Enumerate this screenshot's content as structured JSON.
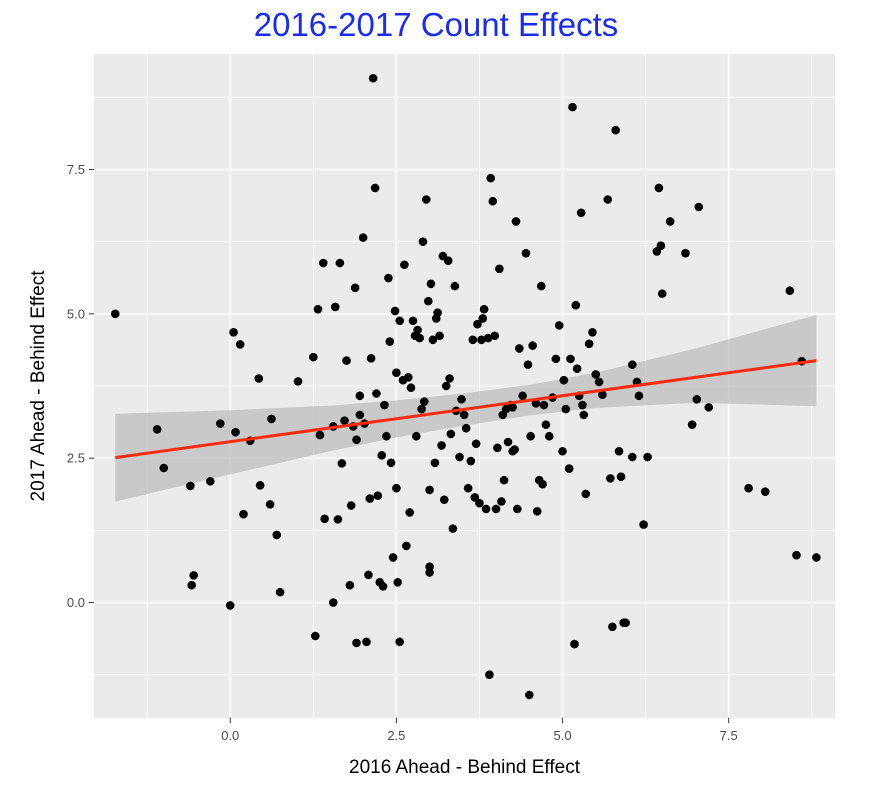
{
  "chart_data": {
    "type": "scatter",
    "title": "2016-2017 Count Effects",
    "xlabel": "2016 Ahead - Behind Effect",
    "ylabel": "2017 Ahead - Behind Effect",
    "xlim": [
      -2.05,
      9.1
    ],
    "ylim": [
      -2.0,
      9.5
    ],
    "xticks": [
      0.0,
      2.5,
      5.0,
      7.5
    ],
    "xtick_labels": [
      "0.0",
      "2.5",
      "5.0",
      "7.5"
    ],
    "yticks": [
      0.0,
      2.5,
      5.0,
      7.5
    ],
    "ytick_labels": [
      "0.0",
      "2.5",
      "5.0",
      "7.5"
    ],
    "grid": true,
    "background": "#ebebeb",
    "point_color": "#000000",
    "fit_line_color": "#ff2a0a",
    "confidence_band_color": "#bdbdbd",
    "title_color": "#1a2cf0",
    "fit_line": {
      "x": [
        -1.73,
        8.82
      ],
      "y": [
        2.51,
        4.19
      ]
    },
    "confidence_band": {
      "x": [
        -1.73,
        0.0,
        1.5,
        2.5,
        3.5,
        4.5,
        5.5,
        7.0,
        8.82
      ],
      "lower": [
        1.75,
        2.22,
        2.62,
        2.86,
        3.06,
        3.24,
        3.37,
        3.46,
        3.4
      ],
      "upper": [
        3.27,
        3.33,
        3.41,
        3.5,
        3.62,
        3.77,
        3.98,
        4.4,
        4.98
      ]
    },
    "points": [
      [
        -1.73,
        5.0
      ],
      [
        -1.1,
        3.0
      ],
      [
        -1.0,
        2.33
      ],
      [
        -0.6,
        2.02
      ],
      [
        -0.58,
        0.3
      ],
      [
        -0.55,
        0.47
      ],
      [
        -0.3,
        2.1
      ],
      [
        -0.15,
        3.1
      ],
      [
        0.0,
        -0.05
      ],
      [
        0.05,
        4.68
      ],
      [
        0.08,
        2.95
      ],
      [
        0.15,
        4.47
      ],
      [
        0.2,
        1.53
      ],
      [
        0.3,
        2.8
      ],
      [
        0.43,
        3.88
      ],
      [
        0.45,
        2.03
      ],
      [
        0.6,
        1.7
      ],
      [
        0.62,
        3.18
      ],
      [
        0.7,
        1.17
      ],
      [
        0.75,
        0.18
      ],
      [
        1.02,
        3.83
      ],
      [
        1.25,
        4.25
      ],
      [
        1.28,
        -0.58
      ],
      [
        1.32,
        5.08
      ],
      [
        1.35,
        2.9
      ],
      [
        1.4,
        5.88
      ],
      [
        1.42,
        1.45
      ],
      [
        1.55,
        3.05
      ],
      [
        1.58,
        5.12
      ],
      [
        1.62,
        1.44
      ],
      [
        1.65,
        5.88
      ],
      [
        1.68,
        2.41
      ],
      [
        1.72,
        3.15
      ],
      [
        1.75,
        4.19
      ],
      [
        1.55,
        0.0
      ],
      [
        1.8,
        0.3
      ],
      [
        1.82,
        1.68
      ],
      [
        1.85,
        3.05
      ],
      [
        1.88,
        5.45
      ],
      [
        1.9,
        -0.7
      ],
      [
        1.95,
        3.58
      ],
      [
        1.9,
        2.82
      ],
      [
        1.95,
        3.25
      ],
      [
        2.0,
        6.32
      ],
      [
        2.02,
        3.1
      ],
      [
        2.05,
        -0.68
      ],
      [
        2.08,
        0.48
      ],
      [
        2.1,
        1.8
      ],
      [
        2.12,
        4.23
      ],
      [
        2.15,
        9.08
      ],
      [
        2.18,
        7.18
      ],
      [
        2.2,
        3.62
      ],
      [
        2.22,
        1.85
      ],
      [
        2.25,
        0.35
      ],
      [
        2.28,
        2.55
      ],
      [
        2.3,
        0.28
      ],
      [
        2.32,
        3.42
      ],
      [
        2.35,
        2.88
      ],
      [
        2.38,
        5.62
      ],
      [
        2.4,
        4.52
      ],
      [
        2.42,
        2.42
      ],
      [
        2.45,
        0.78
      ],
      [
        2.48,
        5.05
      ],
      [
        2.5,
        3.98
      ],
      [
        2.52,
        0.35
      ],
      [
        2.55,
        -0.68
      ],
      [
        2.5,
        1.98
      ],
      [
        2.55,
        4.88
      ],
      [
        2.6,
        3.85
      ],
      [
        2.62,
        5.85
      ],
      [
        2.65,
        0.98
      ],
      [
        2.68,
        3.9
      ],
      [
        2.7,
        1.56
      ],
      [
        2.72,
        3.72
      ],
      [
        2.75,
        4.88
      ],
      [
        2.78,
        4.62
      ],
      [
        2.8,
        2.88
      ],
      [
        2.82,
        4.72
      ],
      [
        2.85,
        4.58
      ],
      [
        2.88,
        3.35
      ],
      [
        2.9,
        6.25
      ],
      [
        2.92,
        3.48
      ],
      [
        2.95,
        6.98
      ],
      [
        2.98,
        5.22
      ],
      [
        3.0,
        1.95
      ],
      [
        3.02,
        5.52
      ],
      [
        3.05,
        4.55
      ],
      [
        3.0,
        0.52
      ],
      [
        3.0,
        0.62
      ],
      [
        3.08,
        2.42
      ],
      [
        3.1,
        4.92
      ],
      [
        3.12,
        5.02
      ],
      [
        3.15,
        4.62
      ],
      [
        3.18,
        2.72
      ],
      [
        3.2,
        6.0
      ],
      [
        3.22,
        1.78
      ],
      [
        3.25,
        3.75
      ],
      [
        3.28,
        5.92
      ],
      [
        3.3,
        3.88
      ],
      [
        3.32,
        2.92
      ],
      [
        3.35,
        1.28
      ],
      [
        3.38,
        5.48
      ],
      [
        3.4,
        3.32
      ],
      [
        3.45,
        2.52
      ],
      [
        3.48,
        3.52
      ],
      [
        3.52,
        3.25
      ],
      [
        3.55,
        3.02
      ],
      [
        3.58,
        1.98
      ],
      [
        3.62,
        2.45
      ],
      [
        3.65,
        4.55
      ],
      [
        3.68,
        1.82
      ],
      [
        3.7,
        2.75
      ],
      [
        3.72,
        4.82
      ],
      [
        3.75,
        1.72
      ],
      [
        3.78,
        4.55
      ],
      [
        3.8,
        4.92
      ],
      [
        3.82,
        5.08
      ],
      [
        3.85,
        1.62
      ],
      [
        3.88,
        4.58
      ],
      [
        3.9,
        -1.25
      ],
      [
        3.92,
        7.35
      ],
      [
        3.95,
        6.95
      ],
      [
        3.98,
        4.62
      ],
      [
        4.0,
        1.62
      ],
      [
        4.02,
        2.68
      ],
      [
        4.05,
        5.78
      ],
      [
        4.08,
        1.75
      ],
      [
        4.1,
        3.25
      ],
      [
        4.12,
        2.12
      ],
      [
        4.15,
        3.35
      ],
      [
        4.18,
        2.78
      ],
      [
        4.22,
        3.42
      ],
      [
        4.25,
        3.38
      ],
      [
        4.28,
        2.65
      ],
      [
        4.3,
        6.6
      ],
      [
        4.32,
        1.62
      ],
      [
        4.35,
        4.4
      ],
      [
        4.4,
        3.58
      ],
      [
        4.45,
        6.05
      ],
      [
        4.48,
        4.12
      ],
      [
        4.5,
        -1.6
      ],
      [
        4.52,
        2.88
      ],
      [
        4.55,
        4.45
      ],
      [
        4.6,
        3.45
      ],
      [
        4.62,
        1.58
      ],
      [
        4.65,
        2.12
      ],
      [
        4.68,
        5.48
      ],
      [
        4.7,
        2.05
      ],
      [
        4.72,
        3.42
      ],
      [
        4.75,
        3.08
      ],
      [
        4.8,
        2.88
      ],
      [
        4.85,
        3.55
      ],
      [
        4.9,
        4.22
      ],
      [
        4.95,
        4.8
      ],
      [
        5.0,
        2.62
      ],
      [
        5.02,
        3.85
      ],
      [
        5.05,
        3.35
      ],
      [
        5.1,
        2.32
      ],
      [
        5.12,
        4.22
      ],
      [
        5.15,
        8.58
      ],
      [
        5.18,
        -0.72
      ],
      [
        5.2,
        5.15
      ],
      [
        5.22,
        4.05
      ],
      [
        5.25,
        3.58
      ],
      [
        5.28,
        6.75
      ],
      [
        5.3,
        3.42
      ],
      [
        5.32,
        3.25
      ],
      [
        5.35,
        1.88
      ],
      [
        5.4,
        4.48
      ],
      [
        5.45,
        4.68
      ],
      [
        5.5,
        3.95
      ],
      [
        5.55,
        3.82
      ],
      [
        5.6,
        3.6
      ],
      [
        5.68,
        6.98
      ],
      [
        5.72,
        2.15
      ],
      [
        5.75,
        -0.42
      ],
      [
        5.8,
        8.18
      ],
      [
        5.85,
        2.62
      ],
      [
        5.88,
        2.18
      ],
      [
        5.92,
        -0.35
      ],
      [
        6.05,
        4.12
      ],
      [
        6.12,
        3.82
      ],
      [
        6.15,
        3.58
      ],
      [
        6.22,
        1.35
      ],
      [
        6.28,
        2.52
      ],
      [
        6.42,
        6.08
      ],
      [
        6.45,
        7.18
      ],
      [
        6.48,
        6.18
      ],
      [
        6.5,
        5.35
      ],
      [
        6.62,
        6.6
      ],
      [
        6.85,
        6.05
      ],
      [
        6.95,
        3.08
      ],
      [
        7.02,
        3.52
      ],
      [
        7.05,
        6.85
      ],
      [
        7.2,
        3.38
      ],
      [
        7.8,
        1.98
      ],
      [
        8.05,
        1.92
      ],
      [
        8.42,
        5.4
      ],
      [
        8.52,
        0.82
      ],
      [
        8.6,
        4.18
      ],
      [
        8.82,
        0.78
      ],
      [
        5.95,
        -0.35
      ],
      [
        6.05,
        2.52
      ],
      [
        4.25,
        2.62
      ]
    ]
  }
}
